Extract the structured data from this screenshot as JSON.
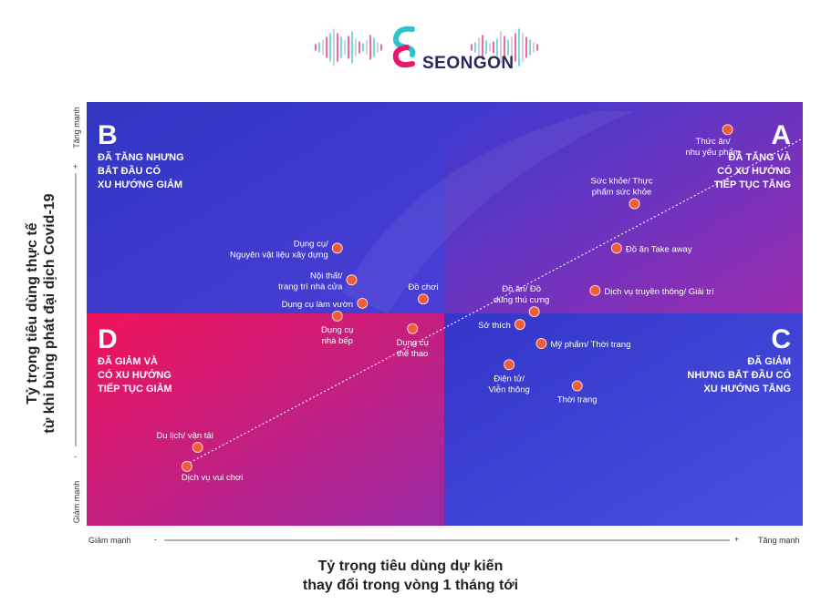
{
  "brand": {
    "name": "SEONGON"
  },
  "chart_data": {
    "type": "scatter",
    "xlabel": [
      "Tỷ trọng tiêu dùng dự kiến",
      "thay đổi trong vòng 1 tháng tới"
    ],
    "ylabel": [
      "Tỷ trọng tiêu dùng thực tế",
      "từ khi bùng phát đại dịch Covid-19"
    ],
    "x_axis": {
      "low_label": "Giảm mạnh",
      "high_label": "Tăng mạnh",
      "minus": "-",
      "plus": "+"
    },
    "y_axis": {
      "low_label": "Giảm mạnh",
      "high_label": "Tăng mạnh",
      "minus": "-",
      "plus": "+"
    },
    "xlim": [
      -1,
      1
    ],
    "ylim": [
      -1,
      1
    ],
    "grid": false,
    "quadrants": [
      {
        "letter": "A",
        "lines": [
          "ĐÃ TĂNG VÀ",
          "CÓ XU HƯỚNG",
          "TIẾP TỤC TĂNG"
        ],
        "position": "top-right",
        "color": "#8a2fb6"
      },
      {
        "letter": "B",
        "lines": [
          "ĐÃ TĂNG NHƯNG",
          "BẮT ĐẦU CÓ",
          "XU HƯỚNG GIẢM"
        ],
        "position": "top-left",
        "color": "#3437c6"
      },
      {
        "letter": "C",
        "lines": [
          "ĐÃ GIẢM",
          "NHƯNG BẮT ĐẦU CÓ",
          "XU HƯỚNG TĂNG"
        ],
        "position": "bottom-right",
        "color": "#3c3fcf"
      },
      {
        "letter": "D",
        "lines": [
          "ĐÃ GIẢM VÀ",
          "CÓ XU HƯỚNG",
          "TIẾP TỤC GIẢM"
        ],
        "position": "bottom-left",
        "color": "#ee1560"
      }
    ],
    "points": [
      {
        "label": [
          "Thức ăn/",
          "nhu yếu phẩm"
        ],
        "x": 0.79,
        "y": 0.87,
        "anchor": "below-left"
      },
      {
        "label": [
          "Sức khỏe/ Thực",
          "phẩm sức khỏe"
        ],
        "x": 0.53,
        "y": 0.52,
        "anchor": "above-left"
      },
      {
        "label": [
          "Đồ ăn Take away"
        ],
        "x": 0.48,
        "y": 0.31,
        "anchor": "right"
      },
      {
        "label": [
          "Dịch vụ truyền thông/ Giải trí"
        ],
        "x": 0.42,
        "y": 0.11,
        "anchor": "right"
      },
      {
        "label": [
          "Đồ ăn/ Đồ",
          "dùng thú cưng"
        ],
        "x": 0.25,
        "y": 0.01,
        "anchor": "above-left"
      },
      {
        "label": [
          "Sở thích"
        ],
        "x": 0.21,
        "y": -0.05,
        "anchor": "left"
      },
      {
        "label": [
          "Mỹ phẩm/ Thời trang"
        ],
        "x": 0.27,
        "y": -0.14,
        "anchor": "right"
      },
      {
        "label": [
          "Điện tử/",
          "Viễn thông"
        ],
        "x": 0.18,
        "y": -0.24,
        "anchor": "below"
      },
      {
        "label": [
          "Thời trang"
        ],
        "x": 0.37,
        "y": -0.34,
        "anchor": "below"
      },
      {
        "label": [
          "Đồ chơi"
        ],
        "x": -0.06,
        "y": 0.07,
        "anchor": "above"
      },
      {
        "label": [
          "Dụng cụ",
          "thể thao"
        ],
        "x": -0.09,
        "y": -0.07,
        "anchor": "below"
      },
      {
        "label": [
          "Dụng cụ/",
          "Nguyên vật liệu xây dựng"
        ],
        "x": -0.3,
        "y": 0.31,
        "anchor": "left"
      },
      {
        "label": [
          "Nội thất/",
          "trang trí nhà cửa"
        ],
        "x": -0.26,
        "y": 0.16,
        "anchor": "left"
      },
      {
        "label": [
          "Dụng cụ làm vườn"
        ],
        "x": -0.23,
        "y": 0.05,
        "anchor": "left"
      },
      {
        "label": [
          "Dụng cụ",
          "nhà bếp"
        ],
        "x": -0.3,
        "y": -0.01,
        "anchor": "below"
      },
      {
        "label": [
          "Du lịch/ vận tải"
        ],
        "x": -0.69,
        "y": -0.63,
        "anchor": "above-left"
      },
      {
        "label": [
          "Dịch vụ vui chơi"
        ],
        "x": -0.72,
        "y": -0.72,
        "anchor": "below-right"
      }
    ],
    "diagonal": "dotted line from bottom-left to top-right"
  },
  "colors": {
    "point_fill": "#ef5d3d",
    "point_stroke": "#ffd2c5",
    "quadrant_A": "#8a2fb6",
    "quadrant_B": "#3437c6",
    "quadrant_C": "#3c3fcf",
    "quadrant_D": "#ee1560"
  }
}
